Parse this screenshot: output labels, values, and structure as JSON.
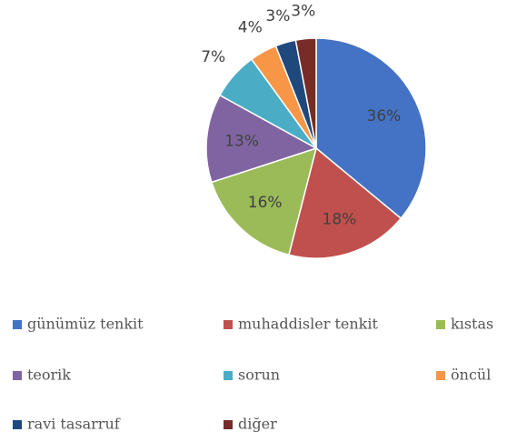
{
  "chart_data": {
    "type": "pie",
    "categories": [
      "günümüz tenkit",
      "muhaddisler tenkit",
      "kıstas",
      "teorik",
      "sorun",
      "öncül",
      "ravi tasarruf",
      "diğer"
    ],
    "values": [
      36,
      18,
      16,
      13,
      7,
      4,
      3,
      3
    ],
    "value_labels": [
      "36%",
      "18%",
      "16%",
      "13%",
      "7%",
      "4%",
      "3%",
      "3%"
    ],
    "colors": [
      "#4472c4",
      "#c0504d",
      "#9bbb59",
      "#8064a2",
      "#4bacc6",
      "#f79646",
      "#1f497d",
      "#772c2a"
    ],
    "legend": "bottom"
  }
}
